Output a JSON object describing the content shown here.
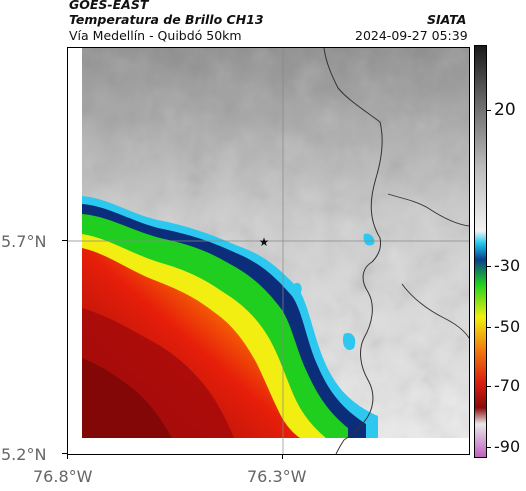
{
  "header": {
    "satellite": "GOES-EAST",
    "product": "Temperatura de Brillo CH13",
    "region": "Vía Medellín - Quibdó 50km",
    "agency": "SIATA",
    "timestamp": "2024-09-27 05:39"
  },
  "axes": {
    "y_labels": [
      "5.7°N",
      "5.2°N"
    ],
    "x_labels": [
      "76.8°W",
      "76.3°W"
    ]
  },
  "colorbar": {
    "labels": [
      "20",
      "-30",
      "-50",
      "-70",
      "-90"
    ],
    "stops": [
      "#1a1a1a",
      "#6a6a6a",
      "#bdbdbd",
      "#f2f2f2",
      "#1fc9ee",
      "#0a3f8a",
      "#1fd21f",
      "#f0f010",
      "#f07a10",
      "#d91e10",
      "#8a0a0a",
      "#e8e8e8",
      "#c060c0"
    ]
  },
  "map": {
    "marker_icon": "star-icon",
    "colors": {
      "cloud_cold": "#b30000",
      "cloud_mid": "#ff8c00",
      "cloud_warm": "#ffff00",
      "green": "#22c022",
      "cyan": "#20c8f0",
      "blue": "#0b2d7a",
      "land": "#d9d9d9",
      "boundary": "#333333"
    }
  }
}
